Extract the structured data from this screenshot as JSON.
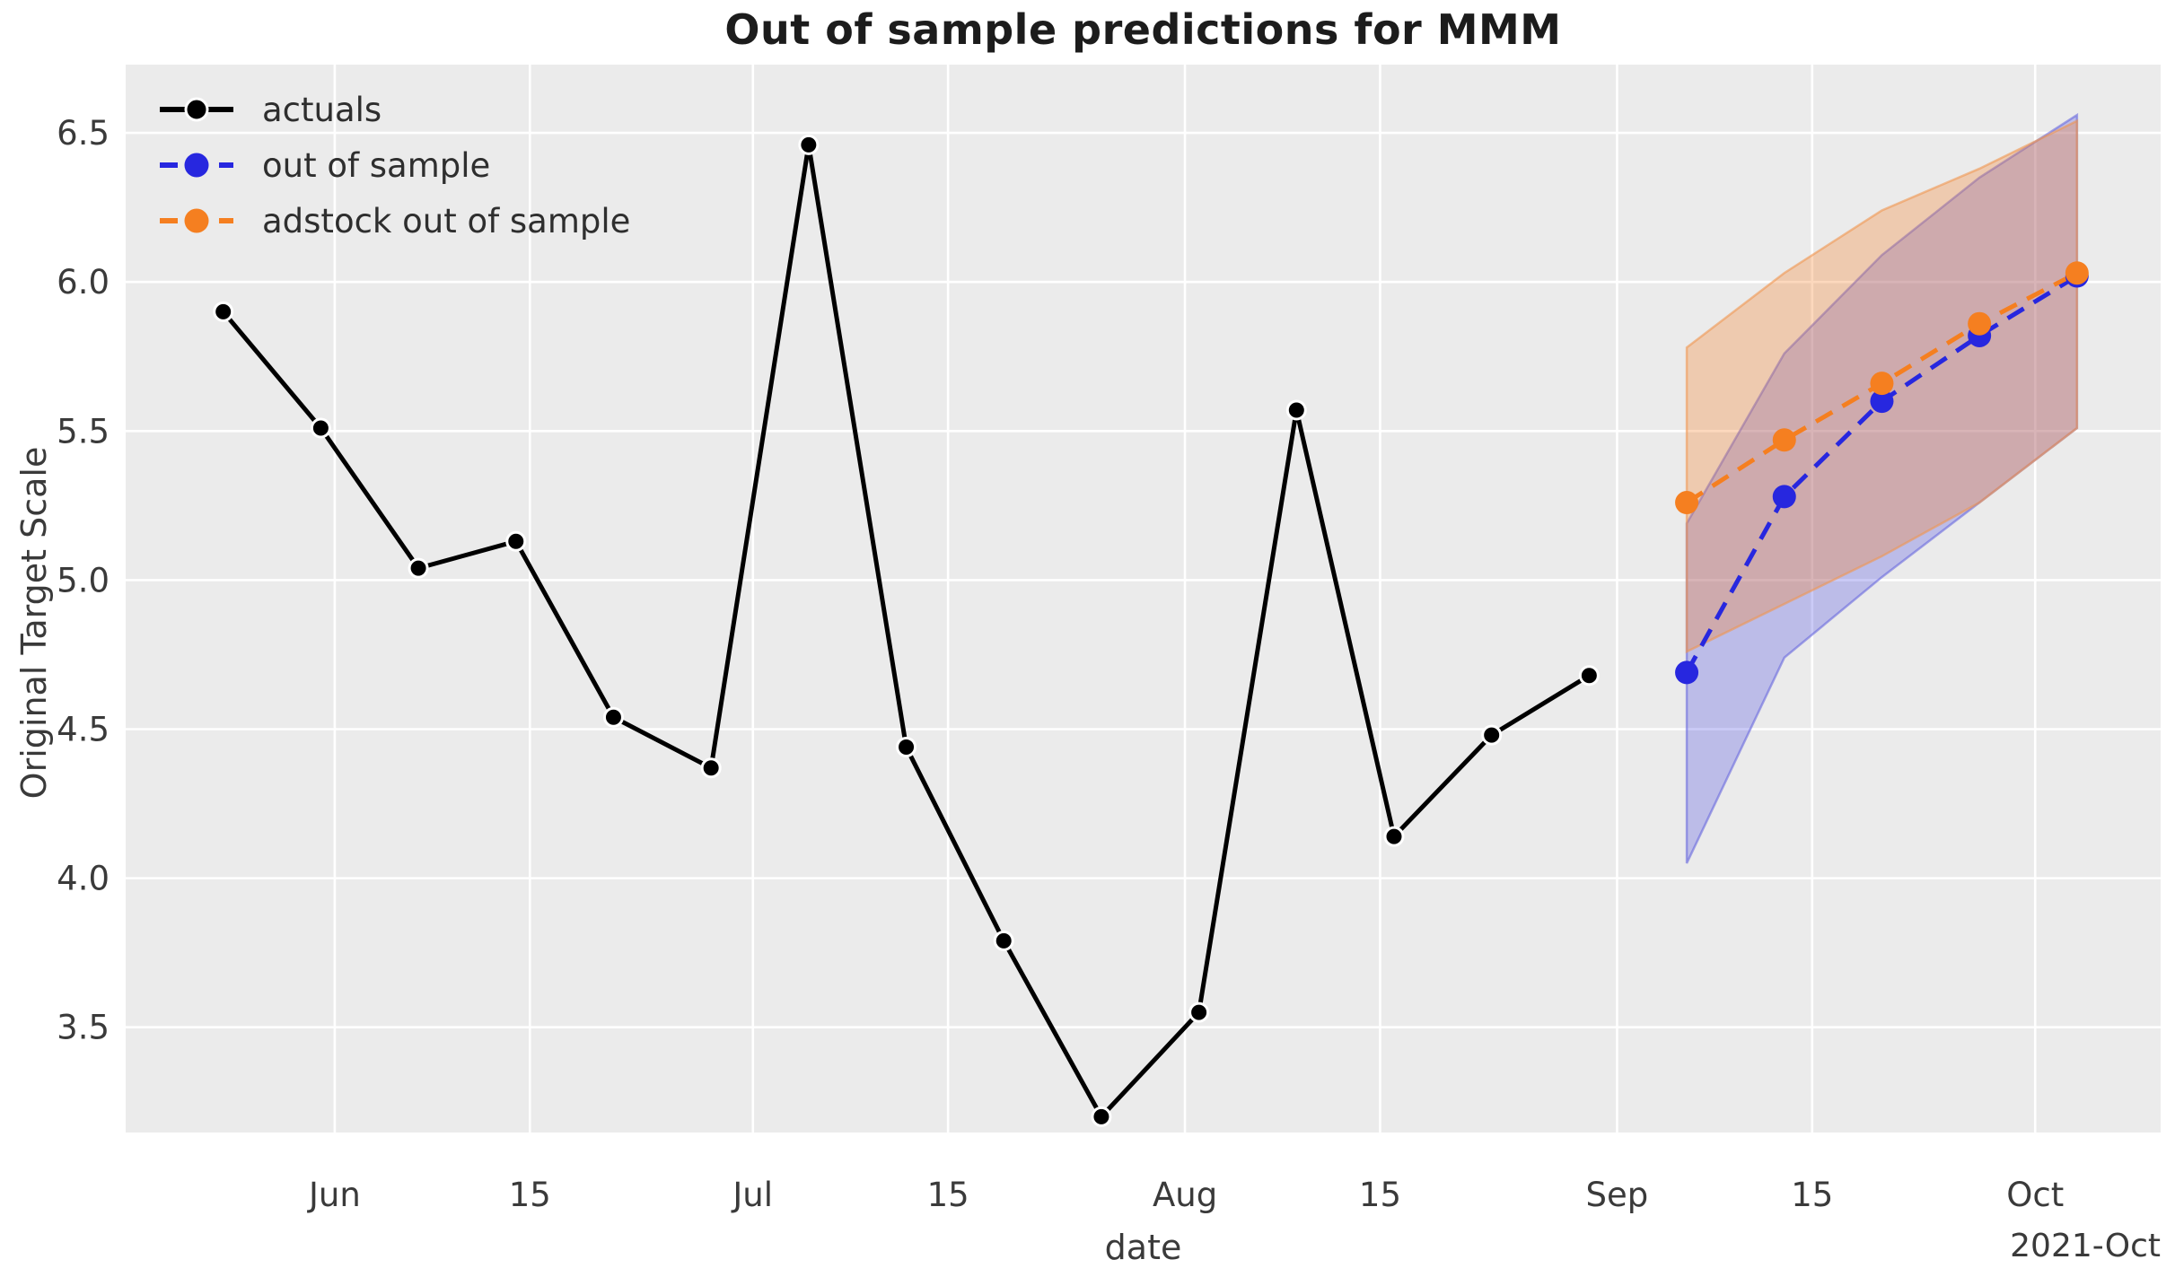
{
  "chart_data": {
    "type": "line",
    "title": "Out of sample predictions for MMM",
    "xlabel": "date",
    "ylabel": "Original Target Scale",
    "x_offset_label": "2021-Oct",
    "xlim": [
      "2021-05-17",
      "2021-10-10"
    ],
    "ylim": [
      3.147,
      6.729
    ],
    "grid": true,
    "legend_position": "upper left",
    "x_ticks": [
      {
        "date": "2021-06-01",
        "label": "Jun"
      },
      {
        "date": "2021-06-15",
        "label": "15"
      },
      {
        "date": "2021-07-01",
        "label": "Jul"
      },
      {
        "date": "2021-07-15",
        "label": "15"
      },
      {
        "date": "2021-08-01",
        "label": "Aug"
      },
      {
        "date": "2021-08-15",
        "label": "15"
      },
      {
        "date": "2021-09-01",
        "label": "Sep"
      },
      {
        "date": "2021-09-15",
        "label": "15"
      },
      {
        "date": "2021-10-01",
        "label": "Oct"
      }
    ],
    "y_ticks": [
      3.5,
      4.0,
      4.5,
      5.0,
      5.5,
      6.0,
      6.5
    ],
    "series": [
      {
        "name": "actuals",
        "color": "#000000",
        "line_style": "solid",
        "marker_edge": "#ffffff",
        "dates": [
          "2021-05-24",
          "2021-05-31",
          "2021-06-07",
          "2021-06-14",
          "2021-06-21",
          "2021-06-28",
          "2021-07-05",
          "2021-07-12",
          "2021-07-19",
          "2021-07-26",
          "2021-08-02",
          "2021-08-09",
          "2021-08-16",
          "2021-08-23",
          "2021-08-30"
        ],
        "values": [
          5.9,
          5.51,
          5.04,
          5.13,
          4.54,
          4.37,
          6.46,
          4.44,
          3.79,
          3.2,
          3.55,
          5.57,
          4.14,
          4.48,
          4.68
        ]
      },
      {
        "name": "out of sample",
        "color": "#2727df",
        "line_style": "dashed",
        "dates": [
          "2021-09-06",
          "2021-09-13",
          "2021-09-20",
          "2021-09-27",
          "2021-10-04"
        ],
        "values": [
          4.69,
          5.28,
          5.6,
          5.82,
          6.02
        ],
        "band_lower": [
          4.05,
          4.74,
          5.01,
          5.26,
          5.51
        ],
        "band_upper": [
          5.19,
          5.76,
          6.09,
          6.35,
          6.56
        ],
        "band_fill": "rgba(70,70,225,0.28)",
        "band_edge": "rgba(95,95,220,0.55)"
      },
      {
        "name": "adstock out of sample",
        "color": "#f57f20",
        "line_style": "dashed",
        "dates": [
          "2021-09-06",
          "2021-09-13",
          "2021-09-20",
          "2021-09-27",
          "2021-10-04"
        ],
        "values": [
          5.26,
          5.47,
          5.66,
          5.86,
          6.03
        ],
        "band_lower": [
          4.76,
          4.92,
          5.08,
          5.26,
          5.51
        ],
        "band_upper": [
          5.78,
          6.03,
          6.24,
          6.38,
          6.54
        ],
        "band_fill": "rgba(245,135,50,0.32)",
        "band_edge": "rgba(240,150,80,0.6)"
      }
    ],
    "colors": {
      "page_bg": "#ffffff",
      "plot_bg": "#ebebeb",
      "grid": "#ffffff",
      "tick_text": "#3a3a3a",
      "title_text": "#1c1c1c"
    }
  }
}
